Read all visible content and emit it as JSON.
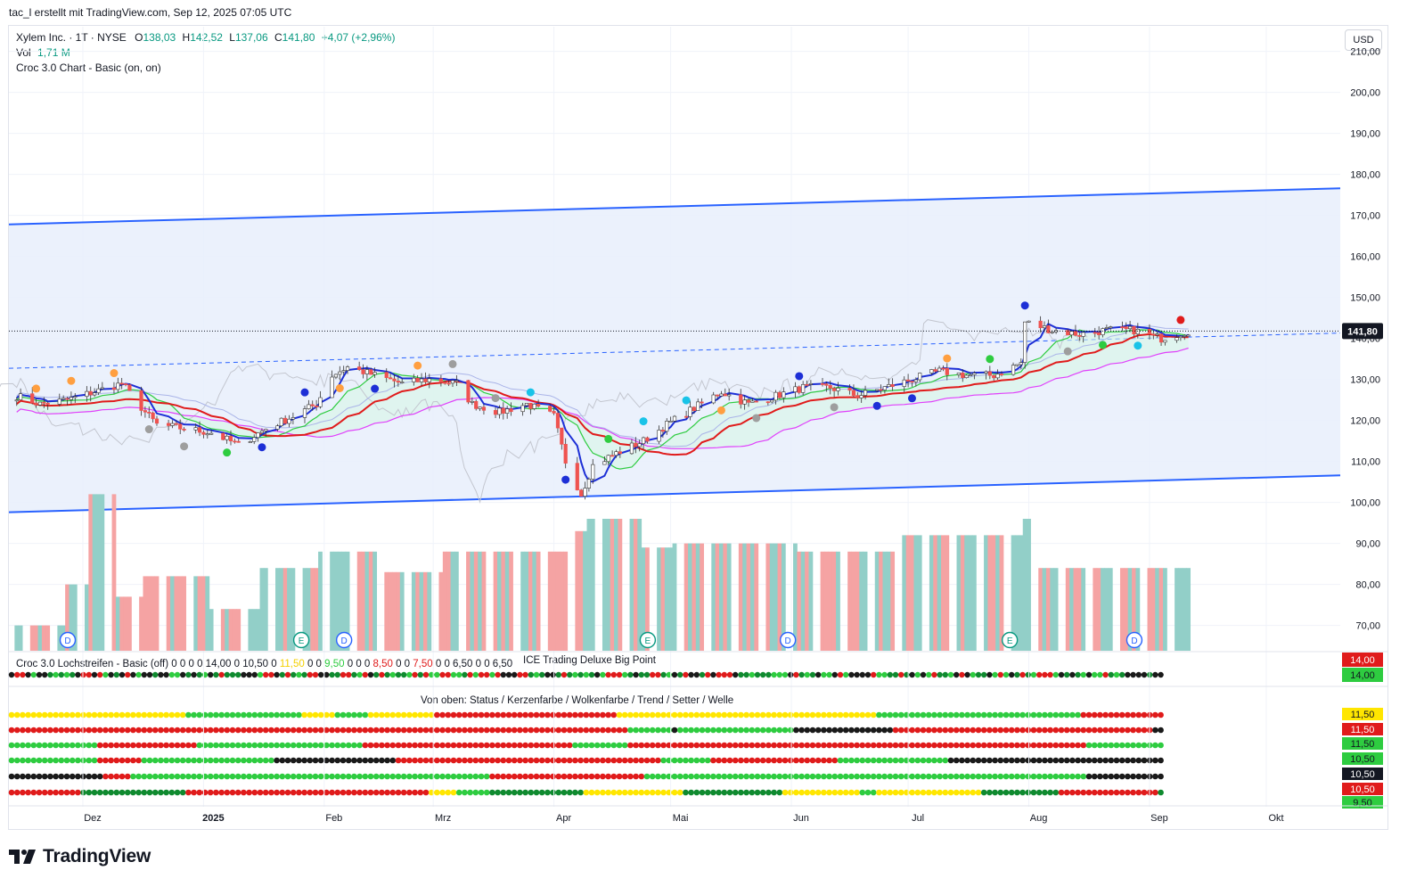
{
  "watermark_line": "tac_l erstellt mit TradingView.com, Sep 12, 2025 07:05 UTC",
  "legend": {
    "symbol": "Xylem Inc. · 1T · NYSE",
    "open_label": "O",
    "open": "138,03",
    "high_label": "H",
    "high": "142,52",
    "low_label": "L",
    "low": "137,06",
    "close_label": "C",
    "close": "141,80",
    "change": "+4,07 (+2,96%)",
    "vol_label": "Vol",
    "vol": "1,71 M",
    "indicator": "Croc 3.0 Chart - Basic (on, on)"
  },
  "currency": "USD",
  "pane2": {
    "title_prefix": "Croc 3.0 Lochstreifen - Basic (off)",
    "values": [
      "0",
      "0",
      "0",
      "0",
      "14,00",
      "0",
      "10,50",
      "0",
      "11,50",
      "0",
      "0",
      "9,50",
      "0",
      "0",
      "0",
      "8,50",
      "0",
      "0",
      "7,50",
      "0",
      "0",
      "6,50",
      "0",
      "0",
      "6,50"
    ],
    "overlay_title": "ICE Trading Deluxe Big Point"
  },
  "pane3": {
    "title": "Von oben: Status / Kerzenfarbe / Wolkenfarbe / Trend / Setter / Welle"
  },
  "price_axis": [
    "210,00",
    "200,00",
    "190,00",
    "180,00",
    "170,00",
    "160,00",
    "150,00",
    "140,00",
    "130,00",
    "120,00",
    "110,00",
    "100,00",
    "90,00",
    "80,00",
    "70,00"
  ],
  "last_price_tag": "141,80",
  "pane2_tags": [
    "14,00",
    "14,00"
  ],
  "pane3_tags": [
    "11,50",
    "11,50",
    "11,50",
    "10,50",
    "10,50",
    "10,50",
    "9,50"
  ],
  "date_axis": [
    "Dez",
    "2025",
    "Feb",
    "Mrz",
    "Apr",
    "Mai",
    "Jun",
    "Jul",
    "Aug",
    "Sep",
    "Okt"
  ],
  "event_badges": [
    "D",
    "E",
    "D",
    "E",
    "D",
    "E",
    "D"
  ],
  "brand": "TradingView",
  "colors": {
    "bull": "#26a69a",
    "bear": "#ef5350",
    "channel": "#2962ff",
    "channel_fill": "#e8eefc",
    "vol_bull": "#92cfc8",
    "vol_bear": "#f5a3a3",
    "blue_line": "#1d2fd6",
    "red_line": "#e01b1b",
    "pink_line": "#e040fb",
    "green_line": "#2ecc40"
  },
  "chart_data": {
    "type": "candlestick",
    "y_range": [
      66,
      214
    ],
    "x_range": [
      "2024-11-12",
      "2025-10-20"
    ],
    "ohlc_summary": {
      "open": 138.03,
      "high": 142.52,
      "low": 137.06,
      "close": 141.8
    },
    "channel": {
      "upper": [
        [
          "2024-11-12",
          167.8
        ],
        [
          "2025-10-20",
          176.6
        ]
      ],
      "lower": [
        [
          "2024-11-12",
          97.6
        ],
        [
          "2025-10-20",
          106.6
        ]
      ],
      "mid_dashed": [
        [
          "2024-11-12",
          132.7
        ],
        [
          "2025-10-20",
          141.3
        ]
      ]
    },
    "close_approx": [
      [
        "2024-11-14",
        126
      ],
      [
        "2024-11-20",
        124
      ],
      [
        "2024-11-27",
        125
      ],
      [
        "2024-12-04",
        127
      ],
      [
        "2024-12-11",
        129
      ],
      [
        "2024-12-17",
        122
      ],
      [
        "2024-12-20",
        119
      ],
      [
        "2024-12-27",
        118
      ],
      [
        "2025-01-03",
        117
      ],
      [
        "2025-01-10",
        114
      ],
      [
        "2025-01-17",
        118
      ],
      [
        "2025-01-24",
        121
      ],
      [
        "2025-01-30",
        124
      ],
      [
        "2025-02-03",
        131
      ],
      [
        "2025-02-07",
        133
      ],
      [
        "2025-02-14",
        131
      ],
      [
        "2025-02-21",
        129
      ],
      [
        "2025-02-28",
        130
      ],
      [
        "2025-03-07",
        129
      ],
      [
        "2025-03-11",
        124
      ],
      [
        "2025-03-18",
        122
      ],
      [
        "2025-03-25",
        124
      ],
      [
        "2025-04-01",
        121
      ],
      [
        "2025-04-04",
        110
      ],
      [
        "2025-04-08",
        102
      ],
      [
        "2025-04-11",
        109
      ],
      [
        "2025-04-17",
        112
      ],
      [
        "2025-04-24",
        115
      ],
      [
        "2025-04-30",
        119
      ],
      [
        "2025-05-07",
        123
      ],
      [
        "2025-05-14",
        127
      ],
      [
        "2025-05-21",
        124
      ],
      [
        "2025-05-28",
        126
      ],
      [
        "2025-06-04",
        128
      ],
      [
        "2025-06-11",
        128
      ],
      [
        "2025-06-18",
        126
      ],
      [
        "2025-06-25",
        128
      ],
      [
        "2025-07-02",
        130
      ],
      [
        "2025-07-09",
        132
      ],
      [
        "2025-07-16",
        131
      ],
      [
        "2025-07-23",
        131
      ],
      [
        "2025-07-30",
        134
      ],
      [
        "2025-07-31",
        144
      ],
      [
        "2025-08-07",
        142
      ],
      [
        "2025-08-14",
        141
      ],
      [
        "2025-08-21",
        142
      ],
      [
        "2025-08-28",
        142
      ],
      [
        "2025-09-04",
        140
      ],
      [
        "2025-09-11",
        141.8
      ]
    ],
    "volume_approx": [
      [
        "2024-11-18",
        70
      ],
      [
        "2024-11-26",
        80
      ],
      [
        "2024-12-02",
        102
      ],
      [
        "2024-12-09",
        77
      ],
      [
        "2024-12-16",
        82
      ],
      [
        "2025-01-02",
        74
      ],
      [
        "2025-01-15",
        84
      ],
      [
        "2025-01-30",
        88
      ],
      [
        "2025-02-14",
        83
      ],
      [
        "2025-03-03",
        88
      ],
      [
        "2025-03-21",
        88
      ],
      [
        "2025-04-04",
        93
      ],
      [
        "2025-04-09",
        96
      ],
      [
        "2025-04-23",
        89
      ],
      [
        "2025-05-01",
        90
      ],
      [
        "2025-06-02",
        88
      ],
      [
        "2025-06-27",
        92
      ],
      [
        "2025-07-30",
        96
      ],
      [
        "2025-08-01",
        84
      ],
      [
        "2025-09-11",
        80
      ]
    ]
  }
}
